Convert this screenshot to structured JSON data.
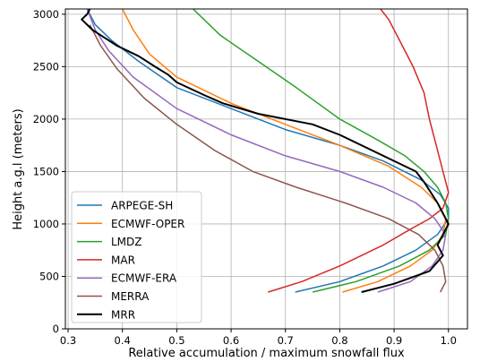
{
  "chart_data": {
    "type": "line",
    "title": "",
    "xlabel": "Relative accumulation / maximum snowfall flux",
    "ylabel": "Height a.g.l (meters)",
    "xlim": [
      0.295,
      1.035
    ],
    "ylim": [
      0,
      3050
    ],
    "xticks": [
      "0.3",
      "0.4",
      "0.5",
      "0.6",
      "0.7",
      "0.8",
      "0.9",
      "1.0"
    ],
    "xtick_values": [
      0.3,
      0.4,
      0.5,
      0.6,
      0.7,
      0.8,
      0.9,
      1.0
    ],
    "yticks": [
      "0",
      "500",
      "1000",
      "1500",
      "2000",
      "2500",
      "3000"
    ],
    "ytick_values": [
      0,
      500,
      1000,
      1500,
      2000,
      2500,
      3000
    ],
    "grid": true,
    "legend_position": "lower-left",
    "series": [
      {
        "name": "ARPEGE-SH",
        "color": "#1f77b4",
        "x": [
          0.718,
          0.8,
          0.88,
          0.94,
          0.98,
          1.0,
          1.0,
          0.985,
          0.95,
          0.88,
          0.8,
          0.7,
          0.6,
          0.5,
          0.43,
          0.38,
          0.35,
          0.335
        ],
        "y": [
          350,
          450,
          600,
          750,
          900,
          1050,
          1150,
          1280,
          1420,
          1600,
          1750,
          1900,
          2100,
          2300,
          2550,
          2750,
          2900,
          3050
        ]
      },
      {
        "name": "ECMWF-OPER",
        "color": "#ff7f0e",
        "x": [
          0.805,
          0.87,
          0.93,
          0.97,
          0.99,
          0.995,
          0.98,
          0.95,
          0.89,
          0.8,
          0.7,
          0.6,
          0.5,
          0.45,
          0.42,
          0.4
        ],
        "y": [
          350,
          450,
          600,
          750,
          900,
          1050,
          1200,
          1350,
          1550,
          1750,
          1950,
          2150,
          2400,
          2620,
          2850,
          3050
        ]
      },
      {
        "name": "LMDZ",
        "color": "#2ca02c",
        "x": [
          0.75,
          0.83,
          0.91,
          0.965,
          0.995,
          1.0,
          0.995,
          0.98,
          0.955,
          0.92,
          0.87,
          0.8,
          0.72,
          0.65,
          0.58,
          0.53
        ],
        "y": [
          350,
          450,
          600,
          750,
          900,
          1050,
          1200,
          1350,
          1500,
          1650,
          1800,
          2000,
          2300,
          2550,
          2800,
          3050
        ]
      },
      {
        "name": "MAR",
        "color": "#d62728",
        "x": [
          0.668,
          0.73,
          0.8,
          0.88,
          0.93,
          0.965,
          0.99,
          1.0,
          0.99,
          0.975,
          0.965,
          0.955,
          0.935,
          0.91,
          0.89,
          0.875
        ],
        "y": [
          350,
          450,
          600,
          800,
          950,
          1050,
          1150,
          1300,
          1500,
          1800,
          2000,
          2250,
          2500,
          2750,
          2950,
          3050
        ]
      },
      {
        "name": "ECMWF-ERA",
        "color": "#9467bd",
        "x": [
          0.87,
          0.93,
          0.97,
          0.99,
          0.995,
          0.975,
          0.94,
          0.88,
          0.8,
          0.7,
          0.6,
          0.5,
          0.42,
          0.375,
          0.35,
          0.335
        ],
        "y": [
          350,
          450,
          600,
          750,
          900,
          1050,
          1200,
          1350,
          1500,
          1650,
          1850,
          2100,
          2400,
          2650,
          2850,
          3050
        ]
      },
      {
        "name": "MERRA",
        "color": "#8c564b",
        "x": [
          0.985,
          0.995,
          0.99,
          0.975,
          0.945,
          0.89,
          0.81,
          0.72,
          0.64,
          0.57,
          0.5,
          0.44,
          0.39,
          0.36,
          0.34
        ],
        "y": [
          350,
          450,
          600,
          750,
          900,
          1050,
          1200,
          1350,
          1500,
          1700,
          1950,
          2200,
          2480,
          2700,
          2900
        ]
      },
      {
        "name": "MRR",
        "color": "#000000",
        "x": [
          0.84,
          0.9,
          0.965,
          0.99,
          0.98,
          1.0,
          0.98,
          0.955,
          0.94,
          0.88,
          0.8,
          0.75,
          0.65,
          0.585,
          0.55,
          0.5,
          0.485,
          0.46,
          0.43,
          0.39,
          0.36,
          0.345,
          0.325,
          0.335,
          0.34
        ],
        "y": [
          350,
          430,
          550,
          700,
          800,
          1000,
          1200,
          1400,
          1500,
          1650,
          1850,
          1950,
          2050,
          2150,
          2230,
          2350,
          2420,
          2500,
          2600,
          2700,
          2800,
          2850,
          2950,
          3000,
          3050
        ]
      }
    ]
  }
}
